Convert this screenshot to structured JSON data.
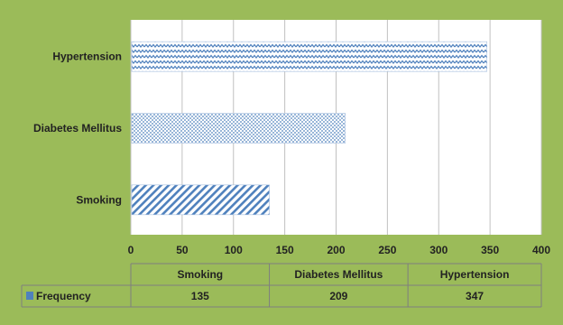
{
  "colors": {
    "background": "#9bbb59",
    "plot_area": "#ffffff",
    "bar_fill": "#4f81bd",
    "gridline": "#c0c0c0",
    "table_border": "#7f7f7f"
  },
  "chart_data": {
    "type": "bar",
    "orientation": "horizontal",
    "categories": [
      "Hypertension",
      "Diabetes Mellitus",
      "Smoking"
    ],
    "series": [
      {
        "name": "Frequency",
        "values": [
          347,
          209,
          135
        ]
      }
    ],
    "bar_patterns": [
      "zigzag",
      "dots",
      "diagonal-stripes"
    ],
    "xlim": [
      0,
      400
    ],
    "x_ticks": [
      "0",
      "50",
      "100",
      "150",
      "200",
      "250",
      "300",
      "350",
      "400"
    ],
    "grid": true,
    "data_table": {
      "columns": [
        "Smoking",
        "Diabetes Mellitus",
        "Hypertension"
      ],
      "row_label": "Frequency",
      "values": [
        "135",
        "209",
        "347"
      ]
    }
  }
}
